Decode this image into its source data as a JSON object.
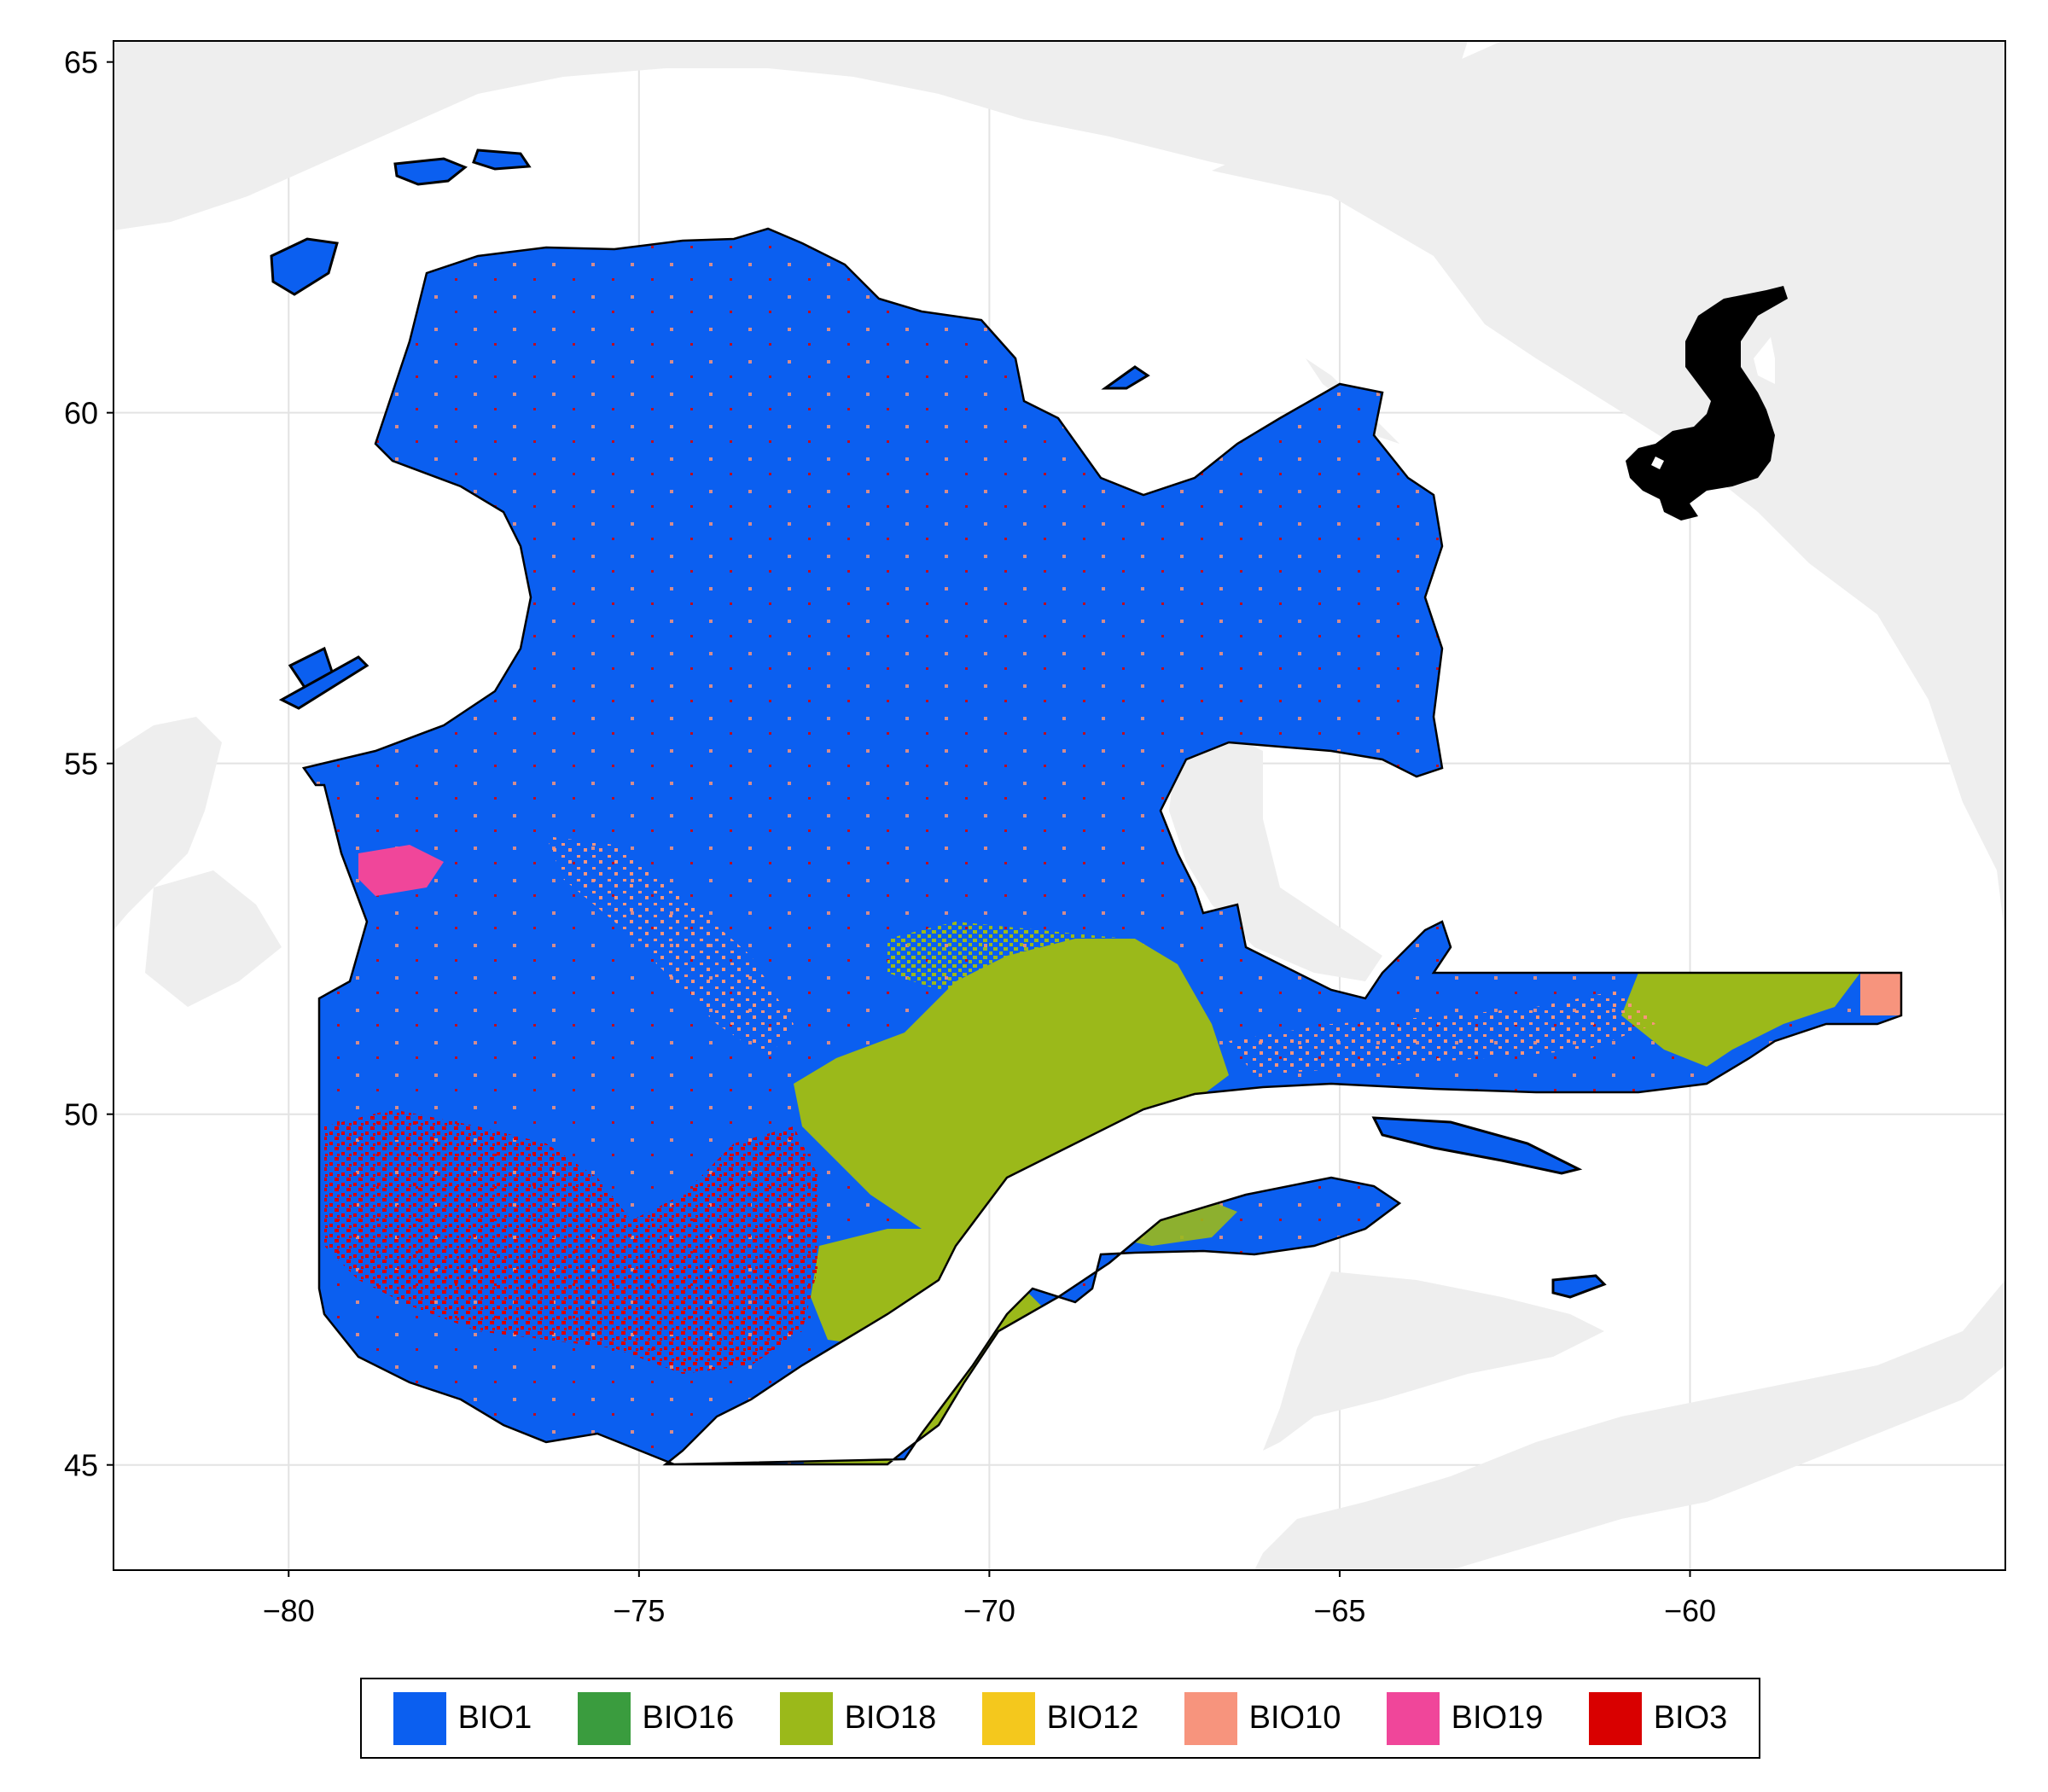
{
  "map": {
    "x_ticks": [
      "−80",
      "−75",
      "−70",
      "−65",
      "−60"
    ],
    "y_ticks": [
      "65",
      "60",
      "55",
      "50",
      "45"
    ],
    "x_range": [
      -82.5,
      -55.5
    ],
    "y_range": [
      43.5,
      65.3
    ],
    "grid": true,
    "background_land_color": "#eeeeee",
    "outline_color": "#000000",
    "silhouette_icon": "skunk-icon"
  },
  "legend": {
    "placement": "bottom",
    "items": [
      {
        "label": "BIO1",
        "color": "#0b5ff0"
      },
      {
        "label": "BIO16",
        "color": "#3a9c3e"
      },
      {
        "label": "BIO18",
        "color": "#9bb91a"
      },
      {
        "label": "BIO12",
        "color": "#f4c81d"
      },
      {
        "label": "BIO10",
        "color": "#f7947d"
      },
      {
        "label": "BIO19",
        "color": "#f0469a"
      },
      {
        "label": "BIO3",
        "color": "#d90000"
      }
    ]
  }
}
